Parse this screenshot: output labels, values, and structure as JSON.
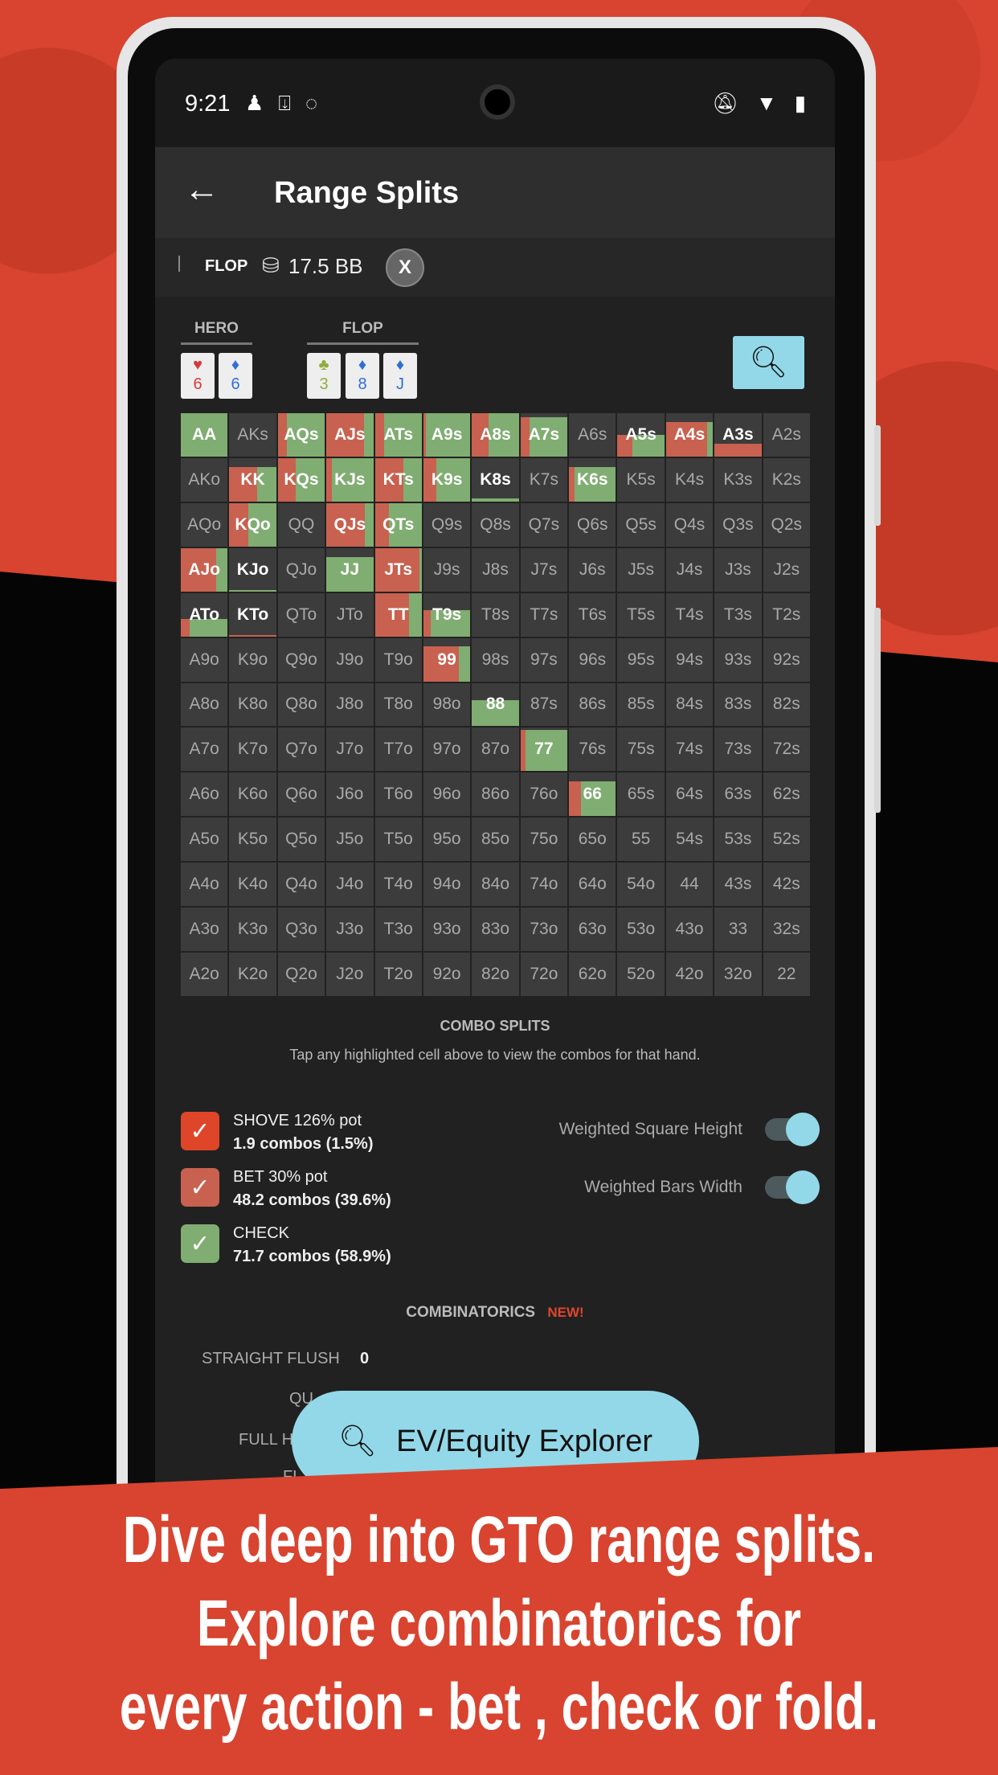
{
  "status_bar": {
    "time": "9:21",
    "left_icons": [
      "person-icon",
      "download-icon",
      "messenger-icon"
    ],
    "right_icons": [
      "bell-off-icon",
      "wifi-icon",
      "battery-icon"
    ]
  },
  "app_bar": {
    "title": "Range Splits",
    "back_icon": "arrow-left-icon"
  },
  "sub_bar": {
    "street": "FLOP",
    "pot": "17.5 BB",
    "close_label": "X"
  },
  "hero": {
    "label": "HERO",
    "cards": [
      {
        "rank": "6",
        "suit": "♥",
        "color": "#d63a3a"
      },
      {
        "rank": "6",
        "suit": "♦",
        "color": "#2f6fd6"
      }
    ]
  },
  "board": {
    "label": "FLOP",
    "cards": [
      {
        "rank": "3",
        "suit": "♣",
        "color": "#8fae3a"
      },
      {
        "rank": "8",
        "suit": "♦",
        "color": "#2f6fd6"
      },
      {
        "rank": "J",
        "suit": "♦",
        "color": "#2f6fd6"
      }
    ]
  },
  "colors": {
    "shove": "#df4529",
    "bet": "#c8614f",
    "check": "#80ad72",
    "cell": "#3c3c3c",
    "accent": "#93d8e8"
  },
  "grid": {
    "rows": [
      [
        "AA",
        "AKs",
        "AQs",
        "AJs",
        "ATs",
        "A9s",
        "A8s",
        "A7s",
        "A6s",
        "A5s",
        "A4s",
        "A3s",
        "A2s"
      ],
      [
        "AKo",
        "KK",
        "KQs",
        "KJs",
        "KTs",
        "K9s",
        "K8s",
        "K7s",
        "K6s",
        "K5s",
        "K4s",
        "K3s",
        "K2s"
      ],
      [
        "AQo",
        "KQo",
        "QQ",
        "QJs",
        "QTs",
        "Q9s",
        "Q8s",
        "Q7s",
        "Q6s",
        "Q5s",
        "Q4s",
        "Q3s",
        "Q2s"
      ],
      [
        "AJo",
        "KJo",
        "QJo",
        "JJ",
        "JTs",
        "J9s",
        "J8s",
        "J7s",
        "J6s",
        "J5s",
        "J4s",
        "J3s",
        "J2s"
      ],
      [
        "ATo",
        "KTo",
        "QTo",
        "JTo",
        "TT",
        "T9s",
        "T8s",
        "T7s",
        "T6s",
        "T5s",
        "T4s",
        "T3s",
        "T2s"
      ],
      [
        "A9o",
        "K9o",
        "Q9o",
        "J9o",
        "T9o",
        "99",
        "98s",
        "97s",
        "96s",
        "95s",
        "94s",
        "93s",
        "92s"
      ],
      [
        "A8o",
        "K8o",
        "Q8o",
        "J8o",
        "T8o",
        "98o",
        "88",
        "87s",
        "86s",
        "85s",
        "84s",
        "83s",
        "82s"
      ],
      [
        "A7o",
        "K7o",
        "Q7o",
        "J7o",
        "T7o",
        "97o",
        "87o",
        "77",
        "76s",
        "75s",
        "74s",
        "73s",
        "72s"
      ],
      [
        "A6o",
        "K6o",
        "Q6o",
        "J6o",
        "T6o",
        "96o",
        "86o",
        "76o",
        "66",
        "65s",
        "64s",
        "63s",
        "62s"
      ],
      [
        "A5o",
        "K5o",
        "Q5o",
        "J5o",
        "T5o",
        "95o",
        "85o",
        "75o",
        "65o",
        "55",
        "54s",
        "53s",
        "52s"
      ],
      [
        "A4o",
        "K4o",
        "Q4o",
        "J4o",
        "T4o",
        "94o",
        "84o",
        "74o",
        "64o",
        "54o",
        "44",
        "43s",
        "42s"
      ],
      [
        "A3o",
        "K3o",
        "Q3o",
        "J3o",
        "T3o",
        "93o",
        "83o",
        "73o",
        "63o",
        "53o",
        "43o",
        "33",
        "32s"
      ],
      [
        "A2o",
        "K2o",
        "Q2o",
        "J2o",
        "T2o",
        "92o",
        "82o",
        "72o",
        "62o",
        "52o",
        "42o",
        "32o",
        "22"
      ]
    ],
    "splits": {
      "AA": {
        "bet": 0,
        "check": 1,
        "weight": 1
      },
      "AQs": {
        "bet": 0.2,
        "check": 0.8,
        "weight": 1
      },
      "AJs": {
        "bet": 0.8,
        "check": 0.2,
        "weight": 1
      },
      "ATs": {
        "bet": 0.2,
        "check": 0.8,
        "weight": 1
      },
      "A9s": {
        "bet": 0.05,
        "check": 0.95,
        "weight": 1
      },
      "A8s": {
        "bet": 0.35,
        "check": 0.65,
        "weight": 1
      },
      "A7s": {
        "bet": 0.2,
        "check": 0.8,
        "weight": 0.9
      },
      "A5s": {
        "bet": 0.32,
        "check": 0.68,
        "weight": 0.5
      },
      "A4s": {
        "bet": 0.88,
        "check": 0.12,
        "weight": 0.8
      },
      "A3s": {
        "bet": 1,
        "check": 0,
        "weight": 0.3
      },
      "KK": {
        "bet": 0.6,
        "check": 0.4,
        "weight": 0.8
      },
      "KQs": {
        "bet": 0.38,
        "check": 0.62,
        "weight": 1
      },
      "KJs": {
        "bet": 0.12,
        "check": 0.88,
        "weight": 1
      },
      "KTs": {
        "bet": 0.6,
        "check": 0.4,
        "weight": 1
      },
      "K9s": {
        "bet": 0.28,
        "check": 0.72,
        "weight": 1
      },
      "K8s": {
        "bet": 0,
        "check": 1,
        "weight": 0.08
      },
      "K6s": {
        "bet": 0.12,
        "check": 0.88,
        "weight": 0.8
      },
      "KQo": {
        "bet": 0.4,
        "check": 0.6,
        "weight": 1
      },
      "QJs": {
        "bet": 0.82,
        "check": 0.18,
        "weight": 1
      },
      "QTs": {
        "bet": 0.3,
        "check": 0.7,
        "weight": 1
      },
      "AJo": {
        "bet": 0.75,
        "check": 0.25,
        "weight": 1
      },
      "KJo": {
        "bet": 0,
        "check": 1,
        "weight": 0.03
      },
      "JJ": {
        "bet": 0,
        "check": 1,
        "weight": 0.8
      },
      "JTs": {
        "bet": 0.95,
        "check": 0.05,
        "weight": 1
      },
      "ATo": {
        "bet": 0.18,
        "check": 0.82,
        "weight": 0.4
      },
      "KTo": {
        "bet": 1,
        "check": 0,
        "weight": 0.03
      },
      "TT": {
        "bet": 0.72,
        "check": 0.28,
        "weight": 1
      },
      "T9s": {
        "bet": 0.15,
        "check": 0.85,
        "weight": 0.6
      },
      "99": {
        "bet": 0.75,
        "check": 0.25,
        "weight": 0.8
      },
      "88": {
        "bet": 0,
        "check": 1,
        "weight": 0.6
      },
      "77": {
        "bet": 0.1,
        "check": 0.9,
        "weight": 0.95
      },
      "66": {
        "bet": 0.25,
        "check": 0.75,
        "weight": 0.8
      }
    }
  },
  "combo_splits": {
    "title": "COMBO SPLITS",
    "subtitle": "Tap any highlighted cell above to view the combos for that hand."
  },
  "legend": [
    {
      "action": "SHOVE  126% pot",
      "combos": "1.9 combos (1.5%)",
      "color": "#df4529",
      "checked": true
    },
    {
      "action": "BET  30% pot",
      "combos": "48.2 combos (39.6%)",
      "color": "#c8614f",
      "checked": true
    },
    {
      "action": "CHECK",
      "combos": "71.7 combos (58.9%)",
      "color": "#80ad72",
      "checked": true
    }
  ],
  "toggles": [
    {
      "label": "Weighted Square Height",
      "on": true
    },
    {
      "label": "Weighted Bars Width",
      "on": true
    }
  ],
  "combinatorics": {
    "title": "COMBINATORICS",
    "badge": "NEW!",
    "rows": [
      {
        "label": "STRAIGHT FLUSH",
        "value": "0"
      }
    ],
    "partial_labels": [
      "QU",
      "FULL H",
      "FL"
    ]
  },
  "ev_button": {
    "label": "EV/Equity Explorer"
  },
  "promo": [
    "Dive deep into GTO range splits.",
    "Explore combinatorics for",
    "every action - bet , check or fold."
  ]
}
